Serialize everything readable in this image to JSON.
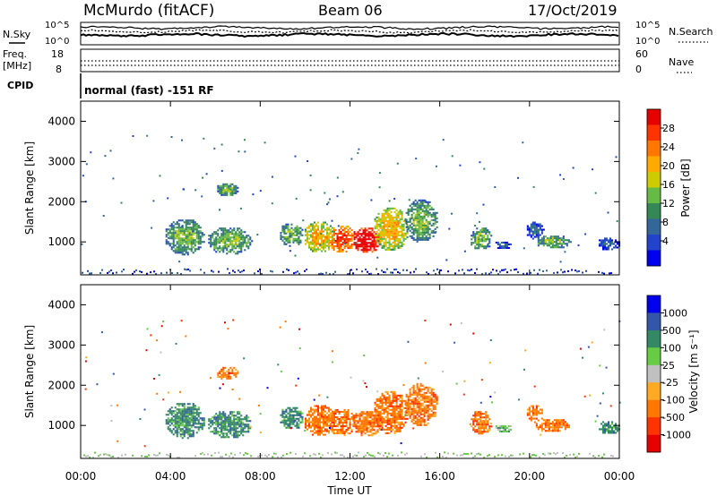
{
  "header": {
    "station": "McMurdo (fitACF)",
    "beam": "Beam 06",
    "date": "17/Oct/2019"
  },
  "noise_panel": {
    "left_label": "N.Sky",
    "right_label": "N.Search",
    "left_ticks": [
      "10^5",
      "10^0"
    ],
    "right_ticks": [
      "10^5",
      "10^0"
    ]
  },
  "freq_panel": {
    "left_label": "Freq.",
    "left_unit": "[MHz]",
    "left_ticks": [
      "18",
      "8"
    ],
    "right_label": "Nave",
    "right_ticks": [
      "60",
      "0"
    ]
  },
  "cpid": {
    "label": "CPID",
    "value": "normal (fast) -151 RF"
  },
  "x_axis": {
    "label": "Time UT",
    "ticks": [
      "00:00",
      "04:00",
      "08:00",
      "12:00",
      "16:00",
      "20:00",
      "00:00"
    ],
    "range_hours": [
      0,
      24
    ]
  },
  "chart_data": [
    {
      "type": "heatmap",
      "name": "power",
      "ylabel": "Slant Range [km]",
      "y_ticks": [
        1000,
        2000,
        3000,
        4000
      ],
      "ylim": [
        180,
        4500
      ],
      "colorbar": {
        "label": "Power [dB]",
        "ticks": [
          "28",
          "24",
          "20",
          "16",
          "12",
          "8",
          "4"
        ],
        "colors": [
          "#e60000",
          "#ff3300",
          "#ff7700",
          "#ffaa00",
          "#cccc00",
          "#66bb44",
          "#338855",
          "#336699",
          "#2244cc",
          "#0000ee"
        ]
      },
      "echo_regions": [
        {
          "t": [
            3.7,
            5.5
          ],
          "r": [
            700,
            1600
          ],
          "level": 1
        },
        {
          "t": [
            5.6,
            7.6
          ],
          "r": [
            700,
            1400
          ],
          "level": 1
        },
        {
          "t": [
            6.0,
            7.0
          ],
          "r": [
            2150,
            2500
          ],
          "level": 1
        },
        {
          "t": [
            8.8,
            9.9
          ],
          "r": [
            900,
            1500
          ],
          "level": 1
        },
        {
          "t": [
            9.9,
            11.3
          ],
          "r": [
            750,
            1550
          ],
          "level": 2
        },
        {
          "t": [
            11.0,
            12.2
          ],
          "r": [
            750,
            1450
          ],
          "level": 3
        },
        {
          "t": [
            12.0,
            13.4
          ],
          "r": [
            750,
            1400
          ],
          "level": 4
        },
        {
          "t": [
            13.0,
            14.6
          ],
          "r": [
            800,
            1900
          ],
          "level": 2
        },
        {
          "t": [
            14.4,
            15.9
          ],
          "r": [
            1000,
            2100
          ],
          "level": 1
        },
        {
          "t": [
            17.3,
            18.3
          ],
          "r": [
            800,
            1400
          ],
          "level": 1
        },
        {
          "t": [
            18.4,
            19.2
          ],
          "r": [
            850,
            1050
          ],
          "level": 0
        },
        {
          "t": [
            19.8,
            20.6
          ],
          "r": [
            1100,
            1550
          ],
          "level": 0
        },
        {
          "t": [
            20.2,
            21.8
          ],
          "r": [
            850,
            1200
          ],
          "level": 1
        },
        {
          "t": [
            23.0,
            24.0
          ],
          "r": [
            800,
            1150
          ],
          "level": 0
        }
      ]
    },
    {
      "type": "heatmap",
      "name": "velocity",
      "ylabel": "Slant Range [km]",
      "y_ticks": [
        1000,
        2000,
        3000,
        4000
      ],
      "ylim": [
        180,
        4500
      ],
      "colorbar": {
        "label": "Velocity [m s⁻¹]",
        "ticks": [
          "1000",
          "500",
          "100",
          "25",
          "-25",
          "-100",
          "-500",
          "-1000"
        ],
        "colors": [
          "#0000ee",
          "#3355aa",
          "#338866",
          "#66cc44",
          "#c0c0c0",
          "#ffaa22",
          "#ff7700",
          "#ff3300",
          "#e60000"
        ]
      },
      "echo_regions": [
        {
          "t": [
            3.7,
            5.5
          ],
          "r": [
            700,
            1600
          ],
          "level": 2
        },
        {
          "t": [
            5.6,
            7.6
          ],
          "r": [
            700,
            1400
          ],
          "level": 2
        },
        {
          "t": [
            6.0,
            7.0
          ],
          "r": [
            2150,
            2500
          ],
          "level": 6
        },
        {
          "t": [
            8.8,
            9.9
          ],
          "r": [
            900,
            1500
          ],
          "level": 2
        },
        {
          "t": [
            9.9,
            11.3
          ],
          "r": [
            750,
            1550
          ],
          "level": 6
        },
        {
          "t": [
            11.0,
            12.2
          ],
          "r": [
            750,
            1450
          ],
          "level": 6
        },
        {
          "t": [
            12.0,
            13.4
          ],
          "r": [
            750,
            1400
          ],
          "level": 6
        },
        {
          "t": [
            13.0,
            14.6
          ],
          "r": [
            800,
            1900
          ],
          "level": 6
        },
        {
          "t": [
            14.4,
            15.9
          ],
          "r": [
            1000,
            2100
          ],
          "level": 6
        },
        {
          "t": [
            17.3,
            18.3
          ],
          "r": [
            800,
            1400
          ],
          "level": 6
        },
        {
          "t": [
            18.4,
            19.2
          ],
          "r": [
            850,
            1050
          ],
          "level": 3
        },
        {
          "t": [
            19.8,
            20.6
          ],
          "r": [
            1100,
            1550
          ],
          "level": 6
        },
        {
          "t": [
            20.2,
            21.8
          ],
          "r": [
            850,
            1200
          ],
          "level": 6
        },
        {
          "t": [
            23.0,
            24.0
          ],
          "r": [
            800,
            1150
          ],
          "level": 2
        }
      ]
    }
  ]
}
